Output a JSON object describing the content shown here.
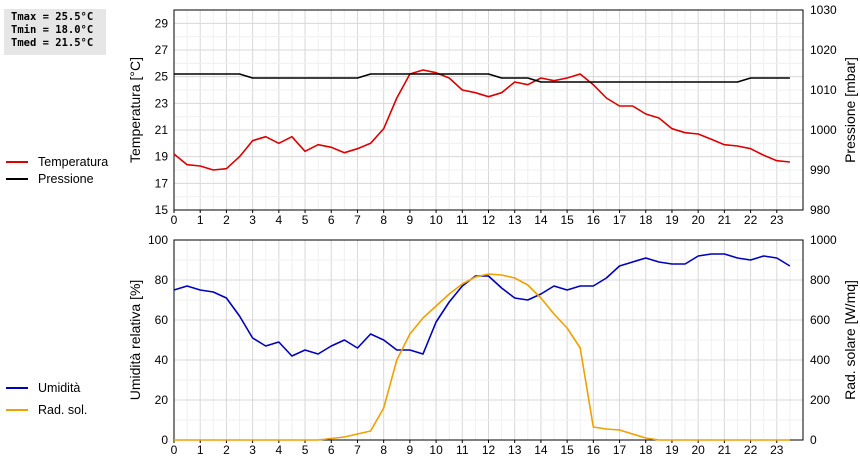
{
  "stats": {
    "tmax": "Tmax = 25.5°C",
    "tmin": "Tmin = 18.0°C",
    "tmed": "Tmed = 21.5°C"
  },
  "legend_top": [
    {
      "label": "Temperatura",
      "color": "#dd0000"
    },
    {
      "label": "Pressione",
      "color": "#000000"
    }
  ],
  "legend_bottom": [
    {
      "label": "Umidità",
      "color": "#0000bb"
    },
    {
      "label": "Rad. sol.",
      "color": "#f0a000"
    }
  ],
  "chart_data": [
    {
      "type": "line",
      "xlim": [
        0,
        24
      ],
      "xticks": [
        0,
        1,
        2,
        3,
        4,
        5,
        6,
        7,
        8,
        9,
        10,
        11,
        12,
        13,
        14,
        15,
        16,
        17,
        18,
        19,
        20,
        21,
        22,
        23
      ],
      "y_left": {
        "label": "Temperatura [°C]",
        "ylim": [
          15,
          30
        ],
        "ticks": [
          15,
          17,
          19,
          21,
          23,
          25,
          27,
          29
        ]
      },
      "y_right": {
        "label": "Pressione [mbar]",
        "ylim": [
          980,
          1030
        ],
        "ticks": [
          980,
          990,
          1000,
          1010,
          1020,
          1030
        ]
      },
      "grid": true,
      "series": [
        {
          "name": "Temperatura",
          "axis": "left",
          "color": "#dd0000",
          "x": [
            0,
            0.5,
            1,
            1.5,
            2,
            2.5,
            3,
            3.5,
            4,
            4.5,
            5,
            5.5,
            6,
            6.5,
            7,
            7.5,
            8,
            8.5,
            9,
            9.5,
            10,
            10.5,
            11,
            11.5,
            12,
            12.5,
            13,
            13.5,
            14,
            14.5,
            15,
            15.5,
            16,
            16.5,
            17,
            17.5,
            18,
            18.5,
            19,
            19.5,
            20,
            20.5,
            21,
            21.5,
            22,
            22.5,
            23,
            23.5
          ],
          "y": [
            19.2,
            18.4,
            18.3,
            18.0,
            18.1,
            19.0,
            20.2,
            20.5,
            20.0,
            20.5,
            19.4,
            19.9,
            19.7,
            19.3,
            19.6,
            20.0,
            21.1,
            23.4,
            25.2,
            25.5,
            25.3,
            24.9,
            24.0,
            23.8,
            23.5,
            23.8,
            24.6,
            24.4,
            24.9,
            24.7,
            24.9,
            25.2,
            24.4,
            23.4,
            22.8,
            22.8,
            22.2,
            21.9,
            21.1,
            20.8,
            20.7,
            20.3,
            19.9,
            19.8,
            19.6,
            19.1,
            18.7,
            18.6
          ]
        },
        {
          "name": "Pressione",
          "axis": "right",
          "color": "#000000",
          "x": [
            0,
            0.5,
            1,
            1.5,
            2,
            2.5,
            3,
            3.5,
            4,
            4.5,
            5,
            5.5,
            6,
            6.5,
            7,
            7.5,
            8,
            8.5,
            9,
            9.5,
            10,
            10.5,
            11,
            11.5,
            12,
            12.5,
            13,
            13.5,
            14,
            14.5,
            15,
            15.5,
            16,
            16.5,
            17,
            17.5,
            18,
            18.5,
            19,
            19.5,
            20,
            20.5,
            21,
            21.5,
            22,
            22.5,
            23,
            23.5
          ],
          "y": [
            1014,
            1014,
            1014,
            1014,
            1014,
            1014,
            1013,
            1013,
            1013,
            1013,
            1013,
            1013,
            1013,
            1013,
            1013,
            1014,
            1014,
            1014,
            1014,
            1014,
            1014,
            1014,
            1014,
            1014,
            1014,
            1013,
            1013,
            1013,
            1012,
            1012,
            1012,
            1012,
            1012,
            1012,
            1012,
            1012,
            1012,
            1012,
            1012,
            1012,
            1012,
            1012,
            1012,
            1012,
            1013,
            1013,
            1013,
            1013
          ]
        }
      ]
    },
    {
      "type": "line",
      "xlim": [
        0,
        24
      ],
      "xticks": [
        0,
        1,
        2,
        3,
        4,
        5,
        6,
        7,
        8,
        9,
        10,
        11,
        12,
        13,
        14,
        15,
        16,
        17,
        18,
        19,
        20,
        21,
        22,
        23
      ],
      "y_left": {
        "label": "Umidità relativa [%]",
        "ylim": [
          0,
          100
        ],
        "ticks": [
          0,
          20,
          40,
          60,
          80,
          100
        ]
      },
      "y_right": {
        "label": "Rad. solare [W/mq]",
        "ylim": [
          0,
          1000
        ],
        "ticks": [
          0,
          200,
          400,
          600,
          800,
          1000
        ]
      },
      "grid": true,
      "series": [
        {
          "name": "Umidità",
          "axis": "left",
          "color": "#0000bb",
          "x": [
            0,
            0.5,
            1,
            1.5,
            2,
            2.5,
            3,
            3.5,
            4,
            4.5,
            5,
            5.5,
            6,
            6.5,
            7,
            7.5,
            8,
            8.5,
            9,
            9.5,
            10,
            10.5,
            11,
            11.5,
            12,
            12.5,
            13,
            13.5,
            14,
            14.5,
            15,
            15.5,
            16,
            16.5,
            17,
            17.5,
            18,
            18.5,
            19,
            19.5,
            20,
            20.5,
            21,
            21.5,
            22,
            22.5,
            23,
            23.5
          ],
          "y": [
            75,
            77,
            75,
            74,
            71,
            62,
            51,
            47,
            49,
            42,
            45,
            43,
            47,
            50,
            46,
            53,
            50,
            45,
            45,
            43,
            59,
            69,
            77,
            82,
            82,
            76,
            71,
            70,
            73,
            77,
            75,
            77,
            77,
            81,
            87,
            89,
            91,
            89,
            88,
            88,
            92,
            93,
            93,
            91,
            90,
            92,
            91,
            87
          ]
        },
        {
          "name": "Rad. sol.",
          "axis": "right",
          "color": "#f0a000",
          "x": [
            0,
            5.5,
            6.5,
            7,
            7.5,
            8,
            8.5,
            9,
            9.5,
            10,
            10.5,
            11,
            11.5,
            12,
            12.5,
            13,
            13.5,
            14,
            14.5,
            15,
            15.5,
            16,
            16.5,
            17,
            17.5,
            18,
            18.5,
            23.5
          ],
          "y": [
            0,
            0,
            15,
            30,
            45,
            160,
            400,
            530,
            610,
            670,
            730,
            780,
            815,
            830,
            825,
            810,
            775,
            710,
            630,
            560,
            460,
            65,
            55,
            50,
            30,
            10,
            0,
            0
          ]
        }
      ]
    }
  ]
}
